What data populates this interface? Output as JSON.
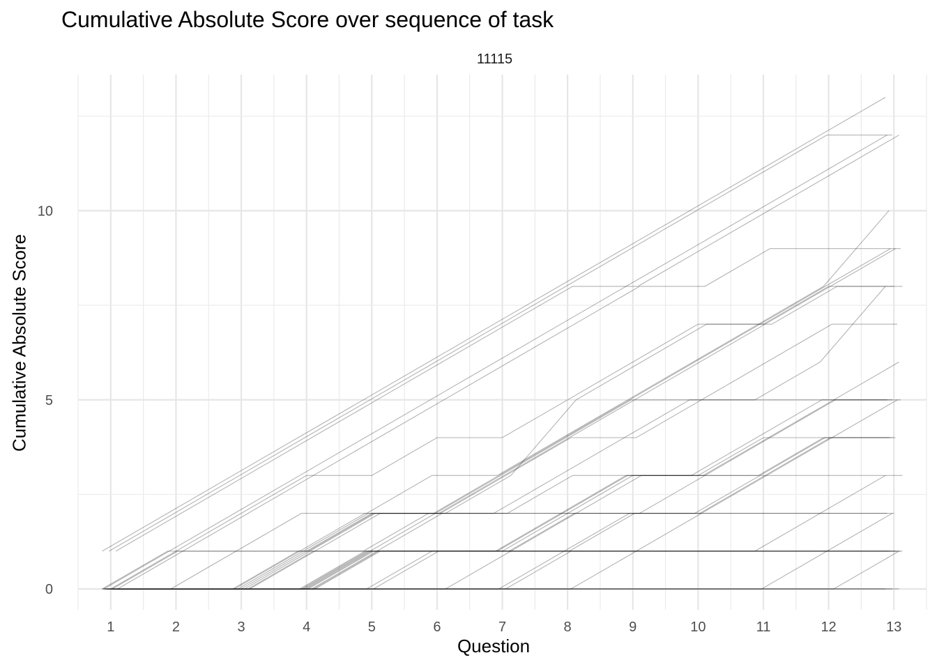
{
  "chart_data": {
    "type": "line",
    "title": "Cumulative Absolute Score over sequence of task",
    "facet": "11115",
    "xlabel": "Question",
    "ylabel": "Cumulative Absolute Score",
    "x": [
      1,
      2,
      3,
      4,
      5,
      6,
      7,
      8,
      9,
      10,
      11,
      12,
      13
    ],
    "xlim": [
      0.5,
      13.5
    ],
    "ylim": [
      -0.55,
      13.6
    ],
    "xticks": [
      "1",
      "2",
      "3",
      "4",
      "5",
      "6",
      "7",
      "8",
      "9",
      "10",
      "11",
      "12",
      "13"
    ],
    "yticks": [
      0,
      5,
      10
    ],
    "grid": true,
    "line_color": "#000000",
    "series": [
      {
        "values": [
          1,
          2,
          3,
          4,
          5,
          6,
          7,
          8,
          9,
          10,
          11,
          12,
          13
        ]
      },
      {
        "values": [
          1,
          2,
          3,
          4,
          5,
          6,
          7,
          8,
          9,
          10,
          11,
          12,
          12
        ]
      },
      {
        "values": [
          1,
          2,
          3,
          4,
          5,
          6,
          7,
          8,
          8,
          9,
          10,
          11,
          12
        ]
      },
      {
        "values": [
          0,
          1,
          2,
          3,
          4,
          5,
          6,
          7,
          8,
          9,
          10,
          11,
          12
        ]
      },
      {
        "values": [
          0,
          1,
          2,
          3,
          3,
          4,
          4,
          5,
          6,
          7,
          7,
          8,
          8
        ]
      },
      {
        "values": [
          0,
          1,
          2,
          3,
          4,
          5,
          6,
          7,
          8,
          8,
          9,
          9,
          9
        ]
      },
      {
        "values": [
          0,
          0,
          1,
          2,
          2,
          3,
          3,
          4,
          5,
          6,
          7,
          8,
          10
        ]
      },
      {
        "values": [
          0,
          1,
          1,
          1,
          2,
          2,
          3,
          4,
          5,
          6,
          7,
          8,
          9
        ]
      },
      {
        "values": [
          0,
          0,
          0,
          1,
          2,
          2,
          3,
          5,
          6,
          7,
          7,
          8,
          8
        ]
      },
      {
        "values": [
          0,
          0,
          0,
          1,
          2,
          2,
          3,
          4,
          5,
          6,
          7,
          8,
          9
        ]
      },
      {
        "values": [
          0,
          0,
          0,
          1,
          2,
          2,
          3,
          4,
          4,
          5,
          6,
          7,
          7
        ]
      },
      {
        "values": [
          0,
          0,
          0,
          1,
          1,
          2,
          2,
          3,
          4,
          5,
          5,
          6,
          8
        ]
      },
      {
        "values": [
          0,
          0,
          0,
          0,
          1,
          2,
          3,
          4,
          5,
          5,
          5,
          5,
          5
        ]
      },
      {
        "values": [
          0,
          0,
          0,
          0,
          1,
          2,
          2,
          3,
          3,
          3,
          4,
          5,
          6
        ]
      },
      {
        "values": [
          0,
          0,
          0,
          0,
          1,
          1,
          1,
          2,
          3,
          3,
          4,
          5,
          5
        ]
      },
      {
        "values": [
          0,
          0,
          0,
          0,
          1,
          1,
          1,
          2,
          3,
          3,
          4,
          4,
          4
        ]
      },
      {
        "values": [
          0,
          0,
          0,
          0,
          1,
          1,
          1,
          2,
          2,
          3,
          4,
          5,
          5
        ]
      },
      {
        "values": [
          0,
          0,
          0,
          0,
          0,
          1,
          1,
          2,
          3,
          3,
          3,
          4,
          4
        ]
      },
      {
        "values": [
          0,
          0,
          0,
          0,
          0,
          1,
          1,
          1,
          2,
          2,
          3,
          4,
          4
        ]
      },
      {
        "values": [
          0,
          0,
          0,
          0,
          0,
          0,
          1,
          2,
          3,
          3,
          3,
          3,
          3
        ]
      },
      {
        "values": [
          0,
          0,
          0,
          0,
          0,
          0,
          0,
          1,
          2,
          2,
          3,
          4,
          4
        ]
      },
      {
        "values": [
          0,
          0,
          0,
          0,
          0,
          0,
          0,
          0,
          1,
          2,
          3,
          4,
          5
        ]
      },
      {
        "values": [
          0,
          1,
          1,
          1,
          1,
          1,
          1,
          1,
          1,
          1,
          1,
          2,
          3
        ]
      },
      {
        "values": [
          0,
          0,
          0,
          0,
          0,
          0,
          0,
          0,
          0,
          0,
          0,
          1,
          2
        ]
      },
      {
        "values": [
          0,
          0,
          0,
          0,
          0,
          0,
          0,
          0,
          0,
          0,
          0,
          0,
          1
        ]
      },
      {
        "values": [
          0,
          0,
          0,
          1,
          2,
          2,
          2,
          2,
          2,
          2,
          2,
          2,
          2
        ]
      },
      {
        "values": [
          0,
          0,
          0,
          1,
          2,
          2,
          2,
          2,
          2,
          2,
          2,
          2,
          2
        ]
      },
      {
        "values": [
          0,
          0,
          0,
          1,
          1,
          1,
          1,
          1,
          1,
          1,
          1,
          1,
          1
        ]
      },
      {
        "values": [
          0,
          0,
          0,
          0,
          1,
          1,
          1,
          1,
          1,
          1,
          1,
          1,
          1
        ]
      },
      {
        "values": [
          0,
          0,
          0,
          0,
          1,
          1,
          1,
          1,
          1,
          1,
          1,
          1,
          1
        ]
      },
      {
        "values": [
          0,
          0,
          0,
          0,
          1,
          1,
          1,
          1,
          1,
          1,
          1,
          1,
          1
        ]
      },
      {
        "values": [
          0,
          0,
          0,
          0,
          1,
          1,
          1,
          1,
          1,
          1,
          1,
          1,
          1
        ]
      },
      {
        "values": [
          0,
          0,
          0,
          0,
          0,
          0,
          0,
          1,
          1,
          1,
          1,
          1,
          1
        ]
      },
      {
        "values": [
          0,
          0,
          0,
          0,
          0,
          0,
          0,
          0,
          0,
          0,
          0,
          0,
          0
        ]
      },
      {
        "values": [
          0,
          0,
          0,
          0,
          0,
          0,
          0,
          0,
          0,
          0,
          0,
          0,
          0
        ]
      },
      {
        "values": [
          0,
          0,
          0,
          0,
          0,
          0,
          0,
          0,
          0,
          0,
          0,
          0,
          0
        ]
      }
    ]
  }
}
